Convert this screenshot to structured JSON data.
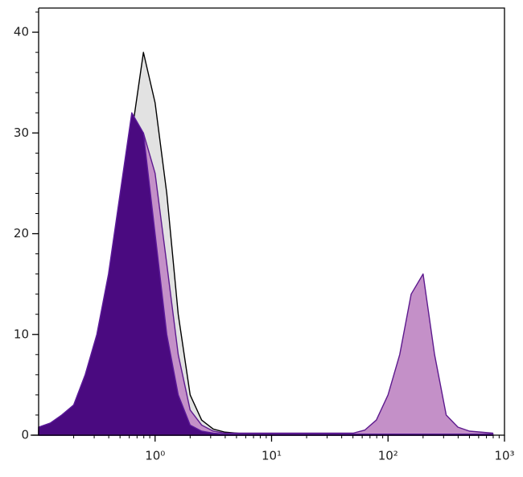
{
  "chart_data": {
    "type": "histogram-overlay",
    "log_x": true,
    "xlim": [
      0.1,
      1000
    ],
    "ylim": [
      0,
      42.4
    ],
    "xticks": [
      {
        "value": 1,
        "label": "10⁰"
      },
      {
        "value": 10,
        "label": "10¹"
      },
      {
        "value": 100,
        "label": "10²"
      },
      {
        "value": 1000,
        "label": "10³"
      }
    ],
    "yticks": [
      0,
      10,
      20,
      30,
      40
    ],
    "x": [
      0.1,
      0.126,
      0.158,
      0.2,
      0.251,
      0.316,
      0.398,
      0.501,
      0.631,
      0.794,
      1,
      1.26,
      1.58,
      2,
      2.51,
      3.16,
      3.98,
      5.01,
      6.31,
      7.94,
      10,
      12.6,
      15.8,
      20,
      25.1,
      31.6,
      39.8,
      50.1,
      63.1,
      79.4,
      100,
      126,
      158,
      200,
      251,
      316,
      398,
      501,
      631,
      794
    ],
    "series": [
      {
        "fill": "#e2e2e2",
        "color": "#000000",
        "values": [
          0.5,
          1,
          1.5,
          2.5,
          4,
          8,
          13,
          20,
          30,
          38,
          33,
          24,
          12,
          4,
          1.5,
          0.6,
          0.3,
          0.2,
          0.1,
          0.1,
          0.1,
          0.1,
          0.1,
          0.1,
          0.1,
          0.1,
          0.1,
          0.1,
          0.1,
          0.1,
          0.1,
          0.1,
          0.1,
          0.1,
          0.1,
          0.1,
          0.1,
          0.1,
          0.1,
          0.1
        ]
      },
      {
        "fill": "#c490c8",
        "color": "#5d1a8e",
        "values": [
          0.8,
          1,
          1.5,
          2.5,
          4,
          7,
          11,
          17,
          25,
          30,
          26,
          17,
          8,
          2.5,
          1,
          0.4,
          0.2,
          0.2,
          0.2,
          0.2,
          0.2,
          0.2,
          0.2,
          0.2,
          0.2,
          0.2,
          0.2,
          0.2,
          0.5,
          1.5,
          4,
          8,
          14,
          16,
          8,
          2,
          0.8,
          0.4,
          0.3,
          0.2
        ]
      },
      {
        "fill": "#4a0a80",
        "color": "#5b1a9a",
        "values": [
          0.8,
          1.2,
          2,
          3,
          6,
          10,
          16,
          24,
          32,
          30,
          20,
          10,
          4,
          1,
          0.4,
          0.2,
          0.1,
          0.1,
          0.1,
          0.1,
          0.1,
          0.1,
          0.1,
          0.1,
          0.1,
          0.1,
          0.1,
          0.1,
          0.1,
          0.1,
          0.1,
          0.1,
          0.1,
          0.1,
          0.1,
          0.1,
          0.1,
          0.1,
          0.1,
          0.1
        ]
      }
    ]
  }
}
